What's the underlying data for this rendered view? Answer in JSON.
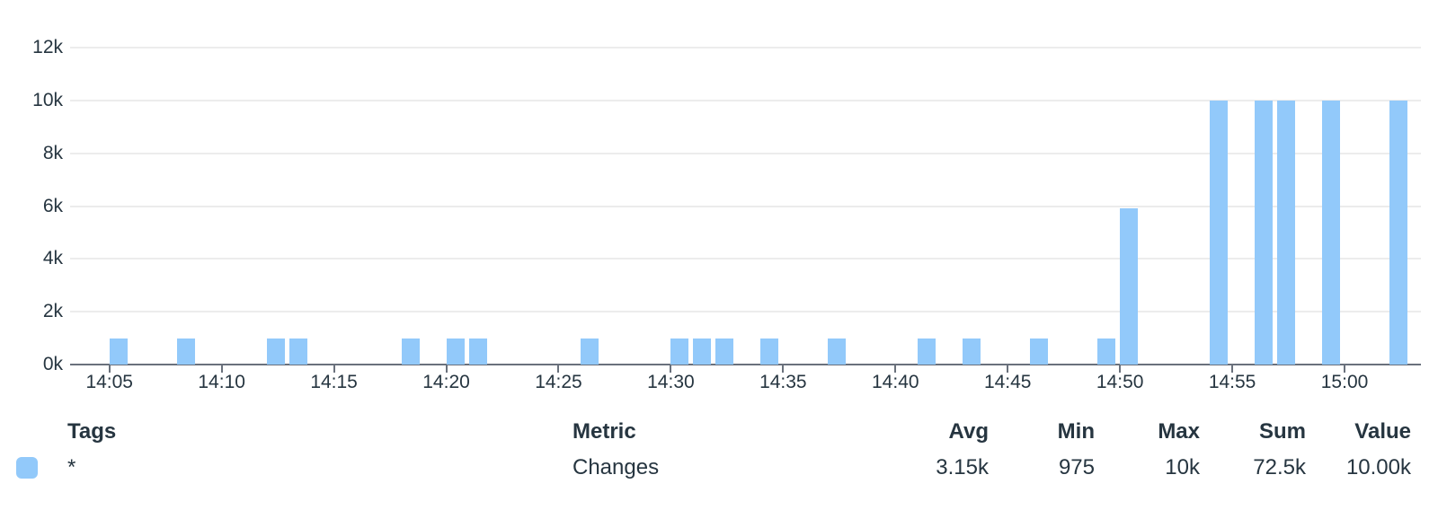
{
  "chart_data": {
    "type": "bar",
    "title": "",
    "metric_label": "Changes",
    "series_tag": "*",
    "bar_color": "#92C9FA",
    "grid": true,
    "y_axis": {
      "max": 12000,
      "ticks": [
        {
          "value": 0,
          "label": "0k"
        },
        {
          "value": 2000,
          "label": "2k"
        },
        {
          "value": 4000,
          "label": "4k"
        },
        {
          "value": 6000,
          "label": "6k"
        },
        {
          "value": 8000,
          "label": "8k"
        },
        {
          "value": 10000,
          "label": "10k"
        },
        {
          "value": 12000,
          "label": "12k"
        }
      ]
    },
    "x_axis": {
      "domain_minutes": [
        3.25,
        63.4
      ],
      "ticks": [
        {
          "minute": 5,
          "label": "14:05"
        },
        {
          "minute": 10,
          "label": "14:10"
        },
        {
          "minute": 15,
          "label": "14:15"
        },
        {
          "minute": 20,
          "label": "14:20"
        },
        {
          "minute": 25,
          "label": "14:25"
        },
        {
          "minute": 30,
          "label": "14:30"
        },
        {
          "minute": 35,
          "label": "14:35"
        },
        {
          "minute": 40,
          "label": "14:40"
        },
        {
          "minute": 45,
          "label": "14:45"
        },
        {
          "minute": 50,
          "label": "14:50"
        },
        {
          "minute": 55,
          "label": "14:55"
        },
        {
          "minute": 60,
          "label": "15:00"
        }
      ]
    },
    "bars": [
      {
        "time": "14:05",
        "minute": 5,
        "value": 975
      },
      {
        "time": "14:08",
        "minute": 8,
        "value": 975
      },
      {
        "time": "14:12",
        "minute": 12,
        "value": 975
      },
      {
        "time": "14:13",
        "minute": 13,
        "value": 975
      },
      {
        "time": "14:18",
        "minute": 18,
        "value": 975
      },
      {
        "time": "14:20",
        "minute": 20,
        "value": 975
      },
      {
        "time": "14:21",
        "minute": 21,
        "value": 975
      },
      {
        "time": "14:26",
        "minute": 26,
        "value": 975
      },
      {
        "time": "14:30",
        "minute": 30,
        "value": 975
      },
      {
        "time": "14:31",
        "minute": 31,
        "value": 975
      },
      {
        "time": "14:32",
        "minute": 32,
        "value": 975
      },
      {
        "time": "14:34",
        "minute": 34,
        "value": 975
      },
      {
        "time": "14:37",
        "minute": 37,
        "value": 975
      },
      {
        "time": "14:41",
        "minute": 41,
        "value": 975
      },
      {
        "time": "14:43",
        "minute": 43,
        "value": 975
      },
      {
        "time": "14:46",
        "minute": 46,
        "value": 975
      },
      {
        "time": "14:49",
        "minute": 49,
        "value": 975
      },
      {
        "time": "14:50",
        "minute": 50,
        "value": 5900
      },
      {
        "time": "14:54",
        "minute": 54,
        "value": 10000
      },
      {
        "time": "14:56",
        "minute": 56,
        "value": 10000
      },
      {
        "time": "14:57",
        "minute": 57,
        "value": 10000
      },
      {
        "time": "14:59",
        "minute": 59,
        "value": 10000
      },
      {
        "time": "15:02",
        "minute": 62,
        "value": 10000
      }
    ]
  },
  "legend": {
    "headers": {
      "tags": "Tags",
      "metric": "Metric",
      "avg": "Avg",
      "min": "Min",
      "max": "Max",
      "sum": "Sum",
      "value": "Value"
    },
    "row": {
      "swatch_color": "#92C9FA",
      "tags": "*",
      "metric": "Changes",
      "avg": "3.15k",
      "min": "975",
      "max": "10k",
      "sum": "72.5k",
      "value": "10.00k"
    }
  }
}
